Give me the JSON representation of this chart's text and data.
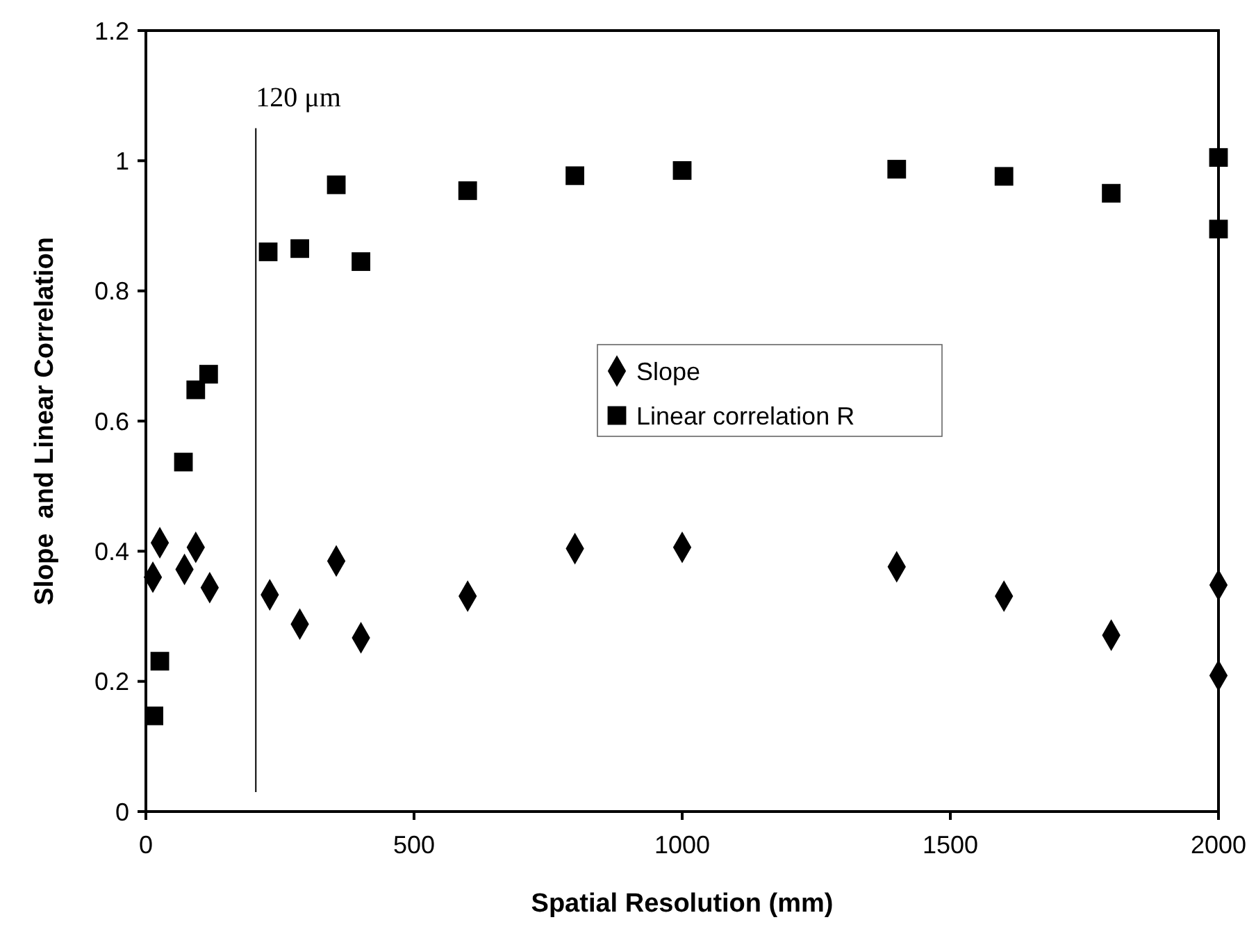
{
  "chart_data": {
    "type": "scatter",
    "xlabel": "Spatial Resolution (mm)",
    "ylabel": "Slope  and Linear Correlation",
    "xlim": [
      0,
      2000
    ],
    "xticks": [
      0,
      500,
      1000,
      1500,
      2000
    ],
    "ylim": [
      0,
      1.2
    ],
    "yticks": [
      0,
      0.2,
      0.4,
      0.6,
      0.8,
      1,
      1.2
    ],
    "grid": false,
    "legend": "center",
    "ref_lines": [
      {
        "axis": "x",
        "value": 205,
        "label": "120 μm",
        "color": "#000000"
      }
    ],
    "series": [
      {
        "name": "Slope",
        "color": "#000000",
        "marker": "diamond",
        "x": [
          13,
          26,
          72,
          93,
          119,
          231,
          287,
          355,
          401,
          600,
          800,
          1000,
          1400,
          1600,
          1800,
          2000,
          2000
        ],
        "values": [
          0.36,
          0.413,
          0.372,
          0.406,
          0.344,
          0.333,
          0.288,
          0.385,
          0.267,
          0.331,
          0.404,
          0.406,
          0.376,
          0.331,
          0.271,
          0.348,
          0.209
        ]
      },
      {
        "name": "Linear correlation R",
        "color": "#000000",
        "marker": "square",
        "x": [
          15,
          26,
          70,
          93,
          117,
          228,
          287,
          355,
          401,
          600,
          800,
          1000,
          1400,
          1600,
          1800,
          2000,
          2000
        ],
        "values": [
          0.147,
          0.231,
          0.537,
          0.648,
          0.672,
          0.86,
          0.865,
          0.963,
          0.845,
          0.954,
          0.977,
          0.985,
          0.987,
          0.976,
          0.95,
          1.005,
          0.895
        ]
      }
    ]
  }
}
